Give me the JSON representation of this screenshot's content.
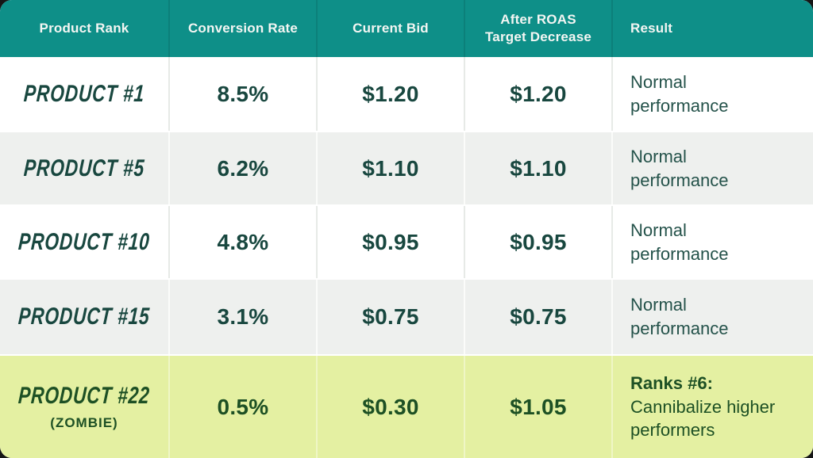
{
  "table": {
    "columns": [
      {
        "label": "Product Rank"
      },
      {
        "label": "Conversion Rate"
      },
      {
        "label": "Current Bid"
      },
      {
        "label": "After ROAS\nTarget Decrease"
      },
      {
        "label": "Result"
      }
    ],
    "rows": [
      {
        "rank": "PRODUCT #1",
        "sub": "",
        "conversion_rate": "8.5%",
        "current_bid": "$1.20",
        "after_roas": "$1.20",
        "result_bold": "",
        "result_text": "Normal\nperformance"
      },
      {
        "rank": "PRODUCT #5",
        "sub": "",
        "conversion_rate": "6.2%",
        "current_bid": "$1.10",
        "after_roas": "$1.10",
        "result_bold": "",
        "result_text": "Normal\nperformance"
      },
      {
        "rank": "PRODUCT #10",
        "sub": "",
        "conversion_rate": "4.8%",
        "current_bid": "$0.95",
        "after_roas": "$0.95",
        "result_bold": "",
        "result_text": "Normal\nperformance"
      },
      {
        "rank": "PRODUCT #15",
        "sub": "",
        "conversion_rate": "3.1%",
        "current_bid": "$0.75",
        "after_roas": "$0.75",
        "result_bold": "",
        "result_text": "Normal\nperformance"
      },
      {
        "rank": "PRODUCT #22",
        "sub": "(ZOMBIE)",
        "conversion_rate": "0.5%",
        "current_bid": "$0.30",
        "after_roas": "$1.05",
        "result_bold": "Ranks #6:",
        "result_text": "Cannibalize higher\nperformers"
      }
    ]
  },
  "colors": {
    "header_bg": "#0e8f88",
    "header_text": "#f4f6f3",
    "row_white": "#ffffff",
    "row_gray": "#eef0ee",
    "row_highlight": "#e4f0a2",
    "text_dark_teal": "#18473f",
    "text_result": "#24524a",
    "text_zombie_green": "#1d5024",
    "page_bg": "#161616"
  },
  "chart_data": {
    "type": "table",
    "columns": [
      "Product Rank",
      "Conversion Rate",
      "Current Bid",
      "After ROAS Target Decrease",
      "Result"
    ],
    "rows": [
      [
        "PRODUCT #1",
        "8.5%",
        "$1.20",
        "$1.20",
        "Normal performance"
      ],
      [
        "PRODUCT #5",
        "6.2%",
        "$1.10",
        "$1.10",
        "Normal performance"
      ],
      [
        "PRODUCT #10",
        "4.8%",
        "$0.95",
        "$0.95",
        "Normal performance"
      ],
      [
        "PRODUCT #15",
        "3.1%",
        "$0.75",
        "$0.75",
        "Normal performance"
      ],
      [
        "PRODUCT #22 (ZOMBIE)",
        "0.5%",
        "$0.30",
        "$1.05",
        "Ranks #6: Cannibalize higher performers"
      ]
    ],
    "highlighted_row_index": 4,
    "layout_hints": "teal header row; alternating white/light-gray body rows; last row highlighted yellow-green"
  }
}
